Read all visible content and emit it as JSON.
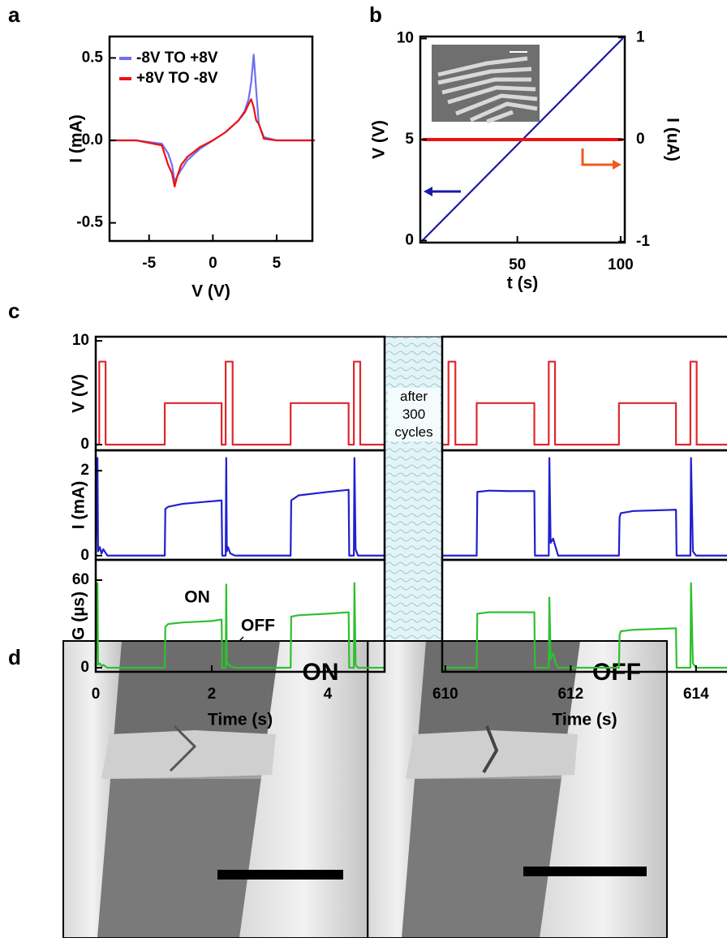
{
  "chart_data": [
    {
      "type": "line",
      "panel": "a",
      "xlabel": "V (V)",
      "ylabel": "I (mA)",
      "legend": "upper left",
      "x": [
        -8,
        -6,
        -4,
        -3.5,
        -3.2,
        -3,
        -2.8,
        -2.5,
        -2,
        -1,
        0,
        1,
        2,
        2.5,
        2.8,
        3,
        3.2,
        3.4,
        3.6,
        4,
        5,
        6,
        8
      ],
      "xlim": [
        -8.1,
        7.8
      ],
      "xticks": [
        -5,
        0,
        5
      ],
      "ylim": [
        -0.61,
        0.63
      ],
      "yticks": [
        -0.5,
        {
          "value": 0,
          "label": "0.0"
        },
        0.5
      ],
      "series": [
        {
          "name": "-8V TO +8V",
          "color": "#6f6ff2",
          "values": [
            0,
            0,
            -0.02,
            -0.08,
            -0.15,
            -0.25,
            -0.22,
            -0.18,
            -0.12,
            -0.05,
            0,
            0.05,
            0.12,
            0.18,
            0.25,
            0.35,
            0.52,
            0.3,
            0.1,
            0.02,
            0,
            0,
            0
          ]
        },
        {
          "name": "+8V TO -8V",
          "color": "#ee1111",
          "values": [
            0,
            0,
            -0.03,
            -0.15,
            -0.2,
            -0.28,
            -0.22,
            -0.15,
            -0.1,
            -0.04,
            0,
            0.05,
            0.12,
            0.17,
            0.22,
            0.25,
            0.2,
            0.12,
            0.1,
            0.01,
            0,
            0,
            0
          ]
        }
      ]
    },
    {
      "type": "line",
      "panel": "b",
      "xlabel": "t (s)",
      "ylabel": "V (V)",
      "y2label": "I (uA)",
      "xlim": [
        3,
        102
      ],
      "xticks": [
        50,
        100
      ],
      "ylim": [
        -0.1,
        10.1
      ],
      "yticks": [
        0,
        5,
        10
      ],
      "y2lim": [
        -1.01,
        1.01
      ],
      "y2ticks": [
        -1,
        0,
        1
      ],
      "series": [
        {
          "color": "#1a1aa8",
          "x": [
            4,
            101
          ],
          "values": [
            0,
            10
          ]
        },
        {
          "color": "#ee1111",
          "axis": "y2",
          "x": [
            4,
            101
          ],
          "values": [
            0,
            0
          ]
        }
      ]
    },
    {
      "type": "line",
      "panel": "c",
      "ylabel": "V (V)",
      "x": [
        0,
        0.06,
        0.06,
        0.17,
        0.17,
        1.19,
        1.19,
        2.17,
        2.17,
        2.24,
        2.24,
        2.36,
        2.36,
        3.36,
        3.36,
        4.36,
        4.36,
        4.45,
        4.45,
        4.56,
        4.56,
        4.98
      ],
      "xlim": [
        0,
        4.98
      ],
      "ylim": [
        -0.55,
        10.4
      ],
      "yticks": [
        0,
        10
      ],
      "series": [
        {
          "color": "#e0262a",
          "values": [
            0,
            0,
            8,
            8,
            0,
            0,
            4,
            4,
            0,
            0,
            8,
            8,
            0,
            0,
            4,
            4,
            0,
            0,
            8,
            8,
            0,
            0
          ]
        }
      ]
    },
    {
      "type": "line",
      "ylabel": "I (mA)",
      "x": [
        0,
        0.03,
        0.04,
        0.07,
        0.1,
        0.13,
        0.2,
        1.19,
        1.2,
        1.25,
        1.5,
        2.0,
        2.17,
        2.18,
        2.24,
        2.25,
        2.26,
        2.28,
        2.32,
        2.4,
        3.36,
        3.37,
        3.5,
        4.0,
        4.36,
        4.37,
        4.45,
        4.46,
        4.48,
        4.52,
        4.98
      ],
      "xlim": [
        0,
        4.98
      ],
      "ylim": [
        -0.1,
        2.48
      ],
      "yticks": [
        0,
        2
      ],
      "series": [
        {
          "color": "#2020d0",
          "values": [
            0,
            2.3,
            0.1,
            0.2,
            0.05,
            0.15,
            0,
            0,
            1.1,
            1.15,
            1.22,
            1.28,
            1.3,
            0,
            0,
            2.3,
            0.1,
            0.2,
            0.05,
            0,
            0,
            1.3,
            1.42,
            1.5,
            1.55,
            0,
            0,
            2.3,
            0.15,
            0,
            0
          ]
        }
      ]
    },
    {
      "type": "line",
      "ylabel": "G (µs)",
      "xlabel": "Time (s)",
      "annotations": [
        "ON",
        "OFF"
      ],
      "x": [
        0,
        0.03,
        0.04,
        0.07,
        0.1,
        0.13,
        0.2,
        1.19,
        1.2,
        1.25,
        1.5,
        2.0,
        2.17,
        2.18,
        2.24,
        2.25,
        2.26,
        2.28,
        2.32,
        2.4,
        3.36,
        3.37,
        3.5,
        4.0,
        4.36,
        4.37,
        4.45,
        4.46,
        4.48,
        4.52,
        4.98
      ],
      "xlim": [
        0,
        4.98
      ],
      "xticks": [
        0,
        2,
        4
      ],
      "ylim": [
        -2.8,
        73.9
      ],
      "yticks": [
        0,
        60
      ],
      "series": [
        {
          "color": "#2fc02f",
          "values": [
            0,
            58,
            2,
            3,
            1,
            2,
            0,
            0,
            28,
            30,
            31,
            32,
            33,
            0,
            0,
            57,
            2,
            3,
            1,
            0,
            0,
            35,
            36,
            37,
            38,
            0,
            0,
            58,
            2,
            0,
            0
          ]
        }
      ]
    },
    {
      "type": "line",
      "x": [
        609.95,
        610.05,
        610.05,
        610.16,
        610.16,
        610.5,
        610.5,
        611.42,
        611.42,
        611.65,
        611.65,
        611.75,
        611.75,
        612.77,
        612.77,
        613.68,
        613.68,
        613.91,
        613.91,
        614.01,
        614.01,
        614.52
      ],
      "xlim": [
        609.95,
        614.52
      ],
      "ylim": [
        -0.55,
        10.4
      ],
      "series": [
        {
          "color": "#e0262a",
          "values": [
            0,
            0,
            8,
            8,
            0,
            0,
            4,
            4,
            0,
            0,
            8,
            8,
            0,
            0,
            4,
            4,
            0,
            0,
            8,
            8,
            0,
            0
          ]
        }
      ]
    },
    {
      "type": "line",
      "x": [
        609.95,
        610.5,
        610.51,
        610.7,
        611.0,
        611.42,
        611.43,
        611.65,
        611.66,
        611.68,
        611.72,
        611.76,
        611.8,
        612.77,
        612.78,
        612.8,
        613.0,
        613.68,
        613.69,
        613.91,
        613.92,
        613.95,
        614.0,
        614.52
      ],
      "xlim": [
        609.95,
        614.52
      ],
      "ylim": [
        -0.1,
        2.48
      ],
      "series": [
        {
          "color": "#2020d0",
          "values": [
            0,
            0,
            1.5,
            1.53,
            1.52,
            1.52,
            0,
            0,
            2.3,
            0.3,
            0.4,
            0.2,
            0,
            0,
            0.9,
            1.0,
            1.05,
            1.08,
            0,
            0,
            2.3,
            0.1,
            0,
            0
          ]
        }
      ]
    },
    {
      "type": "line",
      "xlabel": "Time (s)",
      "x": [
        609.95,
        610.5,
        610.51,
        610.7,
        611.0,
        611.42,
        611.43,
        611.65,
        611.66,
        611.68,
        611.72,
        611.76,
        611.8,
        612.77,
        612.78,
        612.8,
        613.0,
        613.68,
        613.69,
        613.91,
        613.92,
        613.95,
        614.0,
        614.52
      ],
      "xlim": [
        609.95,
        614.52
      ],
      "xticks": [
        610,
        612,
        614
      ],
      "ylim": [
        -2.8,
        73.9
      ],
      "series": [
        {
          "color": "#2fc02f",
          "values": [
            0,
            0,
            37,
            38,
            38,
            38,
            0,
            0,
            48,
            6,
            10,
            3,
            0,
            0,
            22,
            25,
            26,
            27,
            0,
            0,
            58,
            3,
            0,
            0
          ]
        }
      ]
    }
  ],
  "break_label": "after 300 cycles",
  "panel_d": {
    "panel": "d",
    "images": [
      "ON",
      "OFF"
    ]
  }
}
